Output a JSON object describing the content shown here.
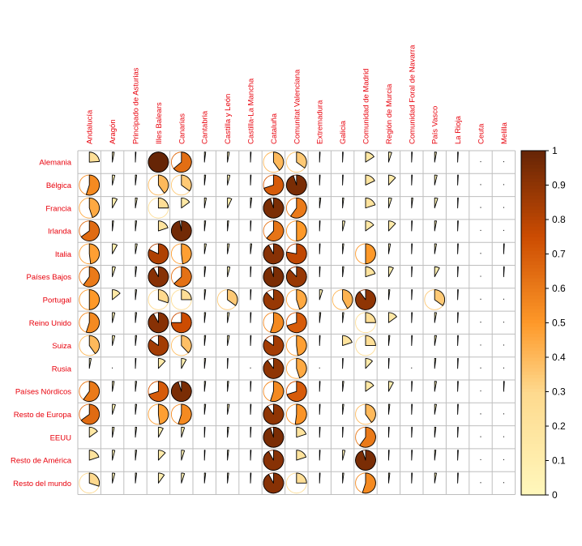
{
  "chart_data": {
    "type": "corrplot-pie",
    "rows": [
      "Alemania",
      "Bélgica",
      "Francia",
      "Irlanda",
      "Italia",
      "Países Bajos",
      "Portugal",
      "Reino Unido",
      "Suiza",
      "Rusia",
      "Países Nórdicos",
      "Resto de Europa",
      "EEUU",
      "Resto de América",
      "Resto del mundo"
    ],
    "columns": [
      "Andalucía",
      "Aragón",
      "Principado de Asturias",
      "Illes Balears",
      "Canarias",
      "Cantabria",
      "Castilla y León",
      "Castilla-La Mancha",
      "Cataluña",
      "Comunitat Valenciana",
      "Extremadura",
      "Galicia",
      "Comunidad de Madrid",
      "Región de Murcia",
      "Comunidad Foral de Navarra",
      "País Vasco",
      "La Rioja",
      "Ceuta",
      "Melilla"
    ],
    "values": [
      [
        0.24,
        0.03,
        0.01,
        1.0,
        0.64,
        0.02,
        0.03,
        0.01,
        0.4,
        0.35,
        0.01,
        0.01,
        0.16,
        0.05,
        0.01,
        0.03,
        0.01,
        0.0,
        0.0
      ],
      [
        0.55,
        0.04,
        0.02,
        0.4,
        0.35,
        0.02,
        0.04,
        0.01,
        0.7,
        0.95,
        0.01,
        0.01,
        0.18,
        0.12,
        0.01,
        0.04,
        0.01,
        0.0,
        0.0
      ],
      [
        0.45,
        0.08,
        0.03,
        0.25,
        0.15,
        0.03,
        0.07,
        0.02,
        0.95,
        0.6,
        0.02,
        0.02,
        0.2,
        0.05,
        0.02,
        0.05,
        0.01,
        0.0,
        0.0
      ],
      [
        0.65,
        0.02,
        0.02,
        0.2,
        0.97,
        0.02,
        0.02,
        0.01,
        0.62,
        0.5,
        0.01,
        0.04,
        0.15,
        0.12,
        0.01,
        0.03,
        0.01,
        0.0,
        0.0
      ],
      [
        0.48,
        0.08,
        0.03,
        0.82,
        0.48,
        0.03,
        0.03,
        0.02,
        0.92,
        0.78,
        0.01,
        0.02,
        0.5,
        0.03,
        0.01,
        0.03,
        0.01,
        0.0,
        0.01
      ],
      [
        0.6,
        0.05,
        0.02,
        0.92,
        0.63,
        0.02,
        0.04,
        0.01,
        0.95,
        0.88,
        0.01,
        0.02,
        0.2,
        0.08,
        0.01,
        0.08,
        0.01,
        0.0,
        0.01
      ],
      [
        0.5,
        0.14,
        0.02,
        0.3,
        0.25,
        0.02,
        0.35,
        0.01,
        0.88,
        0.45,
        0.05,
        0.42,
        0.9,
        0.02,
        0.01,
        0.35,
        0.01,
        0.0,
        0.0
      ],
      [
        0.55,
        0.04,
        0.02,
        0.92,
        0.75,
        0.02,
        0.03,
        0.01,
        0.55,
        0.7,
        0.02,
        0.02,
        0.25,
        0.15,
        0.01,
        0.03,
        0.01,
        0.0,
        0.0
      ],
      [
        0.4,
        0.04,
        0.02,
        0.85,
        0.38,
        0.02,
        0.03,
        0.01,
        0.85,
        0.48,
        0.01,
        0.2,
        0.25,
        0.02,
        0.01,
        0.03,
        0.01,
        0.0,
        0.0
      ],
      [
        0.03,
        0.0,
        0.01,
        0.12,
        0.08,
        0.02,
        0.01,
        0.0,
        0.9,
        0.45,
        0.0,
        0.01,
        0.12,
        0.01,
        0.0,
        0.02,
        0.01,
        0.0,
        0.0
      ],
      [
        0.6,
        0.03,
        0.02,
        0.7,
        0.95,
        0.02,
        0.02,
        0.01,
        0.55,
        0.7,
        0.01,
        0.02,
        0.15,
        0.08,
        0.01,
        0.03,
        0.01,
        0.0,
        0.01
      ],
      [
        0.65,
        0.05,
        0.02,
        0.48,
        0.55,
        0.02,
        0.03,
        0.01,
        0.9,
        0.52,
        0.01,
        0.02,
        0.4,
        0.02,
        0.01,
        0.03,
        0.01,
        0.0,
        0.0
      ],
      [
        0.15,
        0.03,
        0.02,
        0.08,
        0.05,
        0.01,
        0.02,
        0.01,
        0.95,
        0.2,
        0.01,
        0.01,
        0.6,
        0.01,
        0.01,
        0.02,
        0.01,
        0.0,
        0.0
      ],
      [
        0.2,
        0.04,
        0.02,
        0.12,
        0.05,
        0.01,
        0.02,
        0.01,
        0.92,
        0.2,
        0.01,
        0.04,
        0.95,
        0.01,
        0.01,
        0.02,
        0.01,
        0.0,
        0.0
      ],
      [
        0.3,
        0.04,
        0.02,
        0.1,
        0.05,
        0.02,
        0.02,
        0.01,
        0.92,
        0.25,
        0.01,
        0.02,
        0.55,
        0.02,
        0.01,
        0.03,
        0.01,
        0.0,
        0.0
      ]
    ],
    "colorbar": {
      "range": [
        0,
        1
      ],
      "ticks": [
        "0",
        "0.1",
        "0.2",
        "0.3",
        "0.4",
        "0.5",
        "0.6",
        "0.7",
        "0.8",
        "0.9",
        "1"
      ]
    },
    "colors": {
      "low": "#fff7bc",
      "mid": "#fe9929",
      "high": "#662506",
      "label": "#e8000b",
      "grid": "#bebebe"
    }
  }
}
